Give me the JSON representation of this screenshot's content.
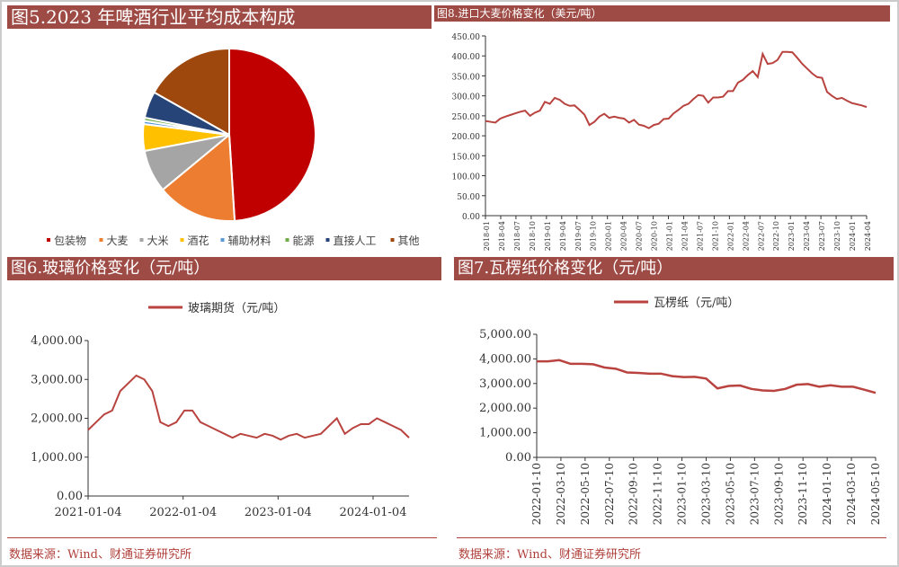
{
  "colors": {
    "title_bg": "#9e4a45",
    "line": "#b8433f"
  },
  "source_left": "数据来源：Wind、财通证券研究所",
  "source_right": "数据来源：Wind、财通证券研究所",
  "chart_data": [
    {
      "id": "pie",
      "type": "pie",
      "title": "图5.2023 年啤酒行业平均成本构成",
      "labels": [
        "包装物",
        "大麦",
        "大米",
        "酒花",
        "辅助材料",
        "能源",
        "直接人工",
        "其他"
      ],
      "values": [
        49,
        15,
        8,
        5,
        0.6,
        0.6,
        5,
        16.8
      ],
      "colors": [
        "#c00000",
        "#ed7d31",
        "#a5a5a5",
        "#ffc000",
        "#5b9bd5",
        "#70ad47",
        "#264478",
        "#9e480e"
      ],
      "legend": "bottom"
    },
    {
      "id": "barley",
      "type": "line",
      "title": "图8.进口大麦价格变化（美元/吨）",
      "ylim": [
        0,
        450
      ],
      "ystep": 50,
      "ydec": true,
      "xticks": [
        "2018-01",
        "2018-04",
        "2018-07",
        "2018-10",
        "2019-01",
        "2019-04",
        "2019-07",
        "2019-10",
        "2020-01",
        "2020-04",
        "2020-07",
        "2020-10",
        "2021-01",
        "2021-04",
        "2021-07",
        "2021-10",
        "2022-01",
        "2022-04",
        "2022-07",
        "2022-10",
        "2023-01",
        "2023-04",
        "2023-07",
        "2023-10",
        "2024-01",
        "2024-04"
      ],
      "values": [
        237,
        235,
        233,
        243,
        248,
        252,
        256,
        260,
        263,
        250,
        258,
        263,
        285,
        280,
        295,
        290,
        280,
        275,
        276,
        265,
        253,
        227,
        235,
        248,
        255,
        245,
        248,
        245,
        243,
        233,
        240,
        228,
        225,
        219,
        227,
        230,
        242,
        243,
        256,
        265,
        275,
        280,
        292,
        302,
        300,
        283,
        296,
        296,
        298,
        312,
        312,
        333,
        340,
        352,
        362,
        347,
        405,
        380,
        382,
        390,
        410,
        410,
        409,
        395,
        380,
        368,
        356,
        347,
        345,
        310,
        300,
        292,
        295,
        288,
        282,
        279,
        276,
        272
      ]
    },
    {
      "id": "glass",
      "type": "line",
      "title": "图6.玻璃价格变化（元/吨）",
      "series_name": "玻璃期货（元/吨）",
      "ylim": [
        0,
        4000
      ],
      "ystep": 1000,
      "xticks": [
        "2021-01-04",
        "2022-01-04",
        "2023-01-04",
        "2024-01-04"
      ],
      "values": [
        1700,
        1900,
        2100,
        2200,
        2700,
        2900,
        3100,
        3000,
        2700,
        1900,
        1800,
        1900,
        2200,
        2200,
        1900,
        1800,
        1700,
        1600,
        1500,
        1600,
        1550,
        1500,
        1600,
        1550,
        1450,
        1550,
        1600,
        1500,
        1550,
        1600,
        1800,
        2000,
        1600,
        1750,
        1850,
        1850,
        2000,
        1900,
        1800,
        1700,
        1500
      ]
    },
    {
      "id": "paper",
      "type": "line",
      "title": "图7.瓦楞纸价格变化（元/吨）",
      "series_name": "瓦楞纸（元/吨）",
      "ylim": [
        0,
        5000
      ],
      "ystep": 1000,
      "xticks": [
        "2022-01-10",
        "2022-03-10",
        "2022-05-10",
        "2022-07-10",
        "2022-09-10",
        "2022-11-10",
        "2023-01-10",
        "2023-03-10",
        "2023-05-10",
        "2023-07-10",
        "2023-09-10",
        "2023-11-10",
        "2024-01-10",
        "2024-03-10",
        "2024-05-10"
      ],
      "values": [
        3900,
        3900,
        3950,
        3800,
        3800,
        3780,
        3650,
        3600,
        3450,
        3430,
        3400,
        3400,
        3300,
        3260,
        3270,
        3200,
        2800,
        2900,
        2920,
        2780,
        2720,
        2700,
        2780,
        2950,
        2980,
        2870,
        2930,
        2870,
        2870,
        2750,
        2620
      ]
    }
  ]
}
